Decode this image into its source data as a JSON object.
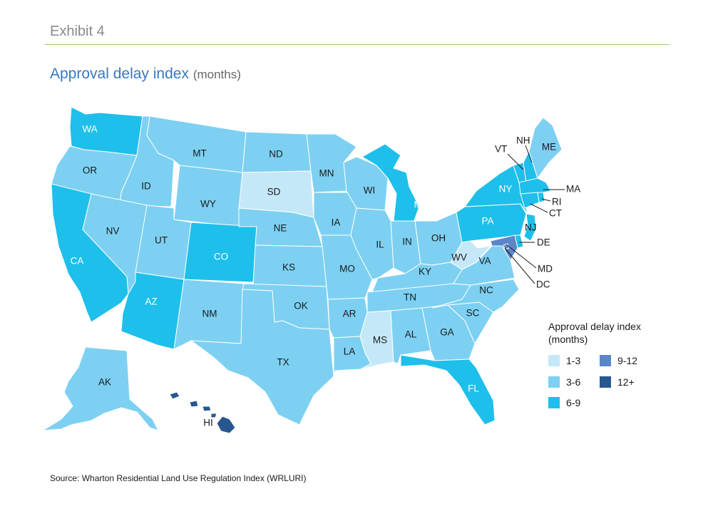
{
  "header": {
    "exhibit": "Exhibit 4",
    "title": "Approval delay index",
    "title_unit": "(months)"
  },
  "legend": {
    "title": "Approval delay index (months)",
    "items": [
      {
        "label": "1-3",
        "color": "#c5e8f8"
      },
      {
        "label": "3-6",
        "color": "#7dd0f2"
      },
      {
        "label": "6-9",
        "color": "#1ebfea"
      },
      {
        "label": "9-12",
        "color": "#5b86c8"
      },
      {
        "label": "12+",
        "color": "#28578f"
      }
    ]
  },
  "map_data": {
    "type": "choropleth",
    "states": [
      {
        "code": "WA",
        "category": "6-9"
      },
      {
        "code": "OR",
        "category": "3-6"
      },
      {
        "code": "CA",
        "category": "6-9"
      },
      {
        "code": "ID",
        "category": "3-6"
      },
      {
        "code": "NV",
        "category": "3-6"
      },
      {
        "code": "MT",
        "category": "3-6"
      },
      {
        "code": "WY",
        "category": "3-6"
      },
      {
        "code": "UT",
        "category": "3-6"
      },
      {
        "code": "AZ",
        "category": "6-9"
      },
      {
        "code": "CO",
        "category": "6-9"
      },
      {
        "code": "NM",
        "category": "3-6"
      },
      {
        "code": "ND",
        "category": "3-6"
      },
      {
        "code": "SD",
        "category": "1-3"
      },
      {
        "code": "NE",
        "category": "3-6"
      },
      {
        "code": "KS",
        "category": "3-6"
      },
      {
        "code": "OK",
        "category": "3-6"
      },
      {
        "code": "TX",
        "category": "3-6"
      },
      {
        "code": "MN",
        "category": "3-6"
      },
      {
        "code": "IA",
        "category": "3-6"
      },
      {
        "code": "MO",
        "category": "3-6"
      },
      {
        "code": "AR",
        "category": "3-6"
      },
      {
        "code": "LA",
        "category": "3-6"
      },
      {
        "code": "WI",
        "category": "3-6"
      },
      {
        "code": "IL",
        "category": "3-6"
      },
      {
        "code": "MI",
        "category": "6-9"
      },
      {
        "code": "IN",
        "category": "3-6"
      },
      {
        "code": "OH",
        "category": "3-6"
      },
      {
        "code": "KY",
        "category": "3-6"
      },
      {
        "code": "TN",
        "category": "3-6"
      },
      {
        "code": "MS",
        "category": "1-3"
      },
      {
        "code": "AL",
        "category": "3-6"
      },
      {
        "code": "GA",
        "category": "3-6"
      },
      {
        "code": "FL",
        "category": "6-9"
      },
      {
        "code": "SC",
        "category": "3-6"
      },
      {
        "code": "NC",
        "category": "3-6"
      },
      {
        "code": "VA",
        "category": "3-6"
      },
      {
        "code": "WV",
        "category": "1-3"
      },
      {
        "code": "PA",
        "category": "6-9"
      },
      {
        "code": "NY",
        "category": "6-9"
      },
      {
        "code": "VT",
        "category": "6-9"
      },
      {
        "code": "NH",
        "category": "6-9"
      },
      {
        "code": "ME",
        "category": "3-6"
      },
      {
        "code": "MA",
        "category": "6-9"
      },
      {
        "code": "RI",
        "category": "6-9"
      },
      {
        "code": "CT",
        "category": "6-9"
      },
      {
        "code": "NJ",
        "category": "6-9"
      },
      {
        "code": "DE",
        "category": "6-9"
      },
      {
        "code": "MD",
        "category": "9-12"
      },
      {
        "code": "DC",
        "category": "9-12"
      },
      {
        "code": "AK",
        "category": "3-6"
      },
      {
        "code": "HI",
        "category": "12+"
      }
    ]
  },
  "source": "Source: Wharton Residential Land Use Regulation Index (WRLURI)"
}
